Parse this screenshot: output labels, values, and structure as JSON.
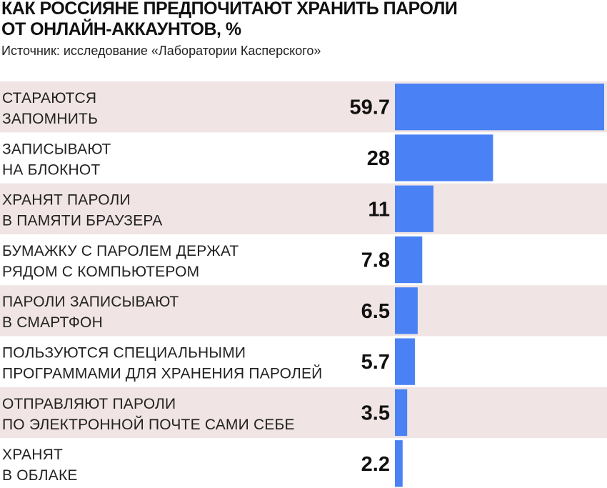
{
  "title_lines": [
    "КАК РОССИЯНЕ ПРЕДПОЧИТАЮТ ХРАНИТЬ ПАРОЛИ",
    "ОТ ОНЛАЙН-АККАУНТОВ, %"
  ],
  "source": "Источник: исследование «Лаборатории Касперского»",
  "colors": {
    "bar": "#4a82f5",
    "stripe": "#f1e4e4",
    "background": "#ffffff"
  },
  "chart_data": {
    "type": "bar",
    "orientation": "horizontal",
    "title": "КАК РОССИЯНЕ ПРЕДПОЧИТАЮТ ХРАНИТЬ ПАРОЛИ ОТ ОНЛАЙН-АККАУНТОВ, %",
    "categories": [
      [
        "СТАРАЮТСЯ",
        "ЗАПОМНИТЬ"
      ],
      [
        "ЗАПИСЫВАЮТ",
        "НА БЛОКНОТ"
      ],
      [
        "ХРАНЯТ ПАРОЛИ",
        "В ПАМЯТИ БРАУЗЕРА"
      ],
      [
        "БУМАЖКУ С ПАРОЛЕМ ДЕРЖАТ",
        "РЯДОМ С КОМПЬЮТЕРОМ"
      ],
      [
        "ПАРОЛИ ЗАПИСЫВАЮТ",
        "В СМАРТФОН"
      ],
      [
        "ПОЛЬЗУЮТСЯ СПЕЦИАЛЬНЫМИ",
        "ПРОГРАММАМИ ДЛЯ ХРАНЕНИЯ ПАРОЛЕЙ"
      ],
      [
        "ОТПРАВЛЯЮТ ПАРОЛИ",
        "ПО ЭЛЕКТРОННОЙ ПОЧТЕ САМИ СЕБЕ"
      ],
      [
        "ХРАНЯТ",
        "В ОБЛАКЕ"
      ]
    ],
    "values": [
      59.7,
      28,
      11,
      7.8,
      6.5,
      5.7,
      3.5,
      2.2
    ],
    "value_labels": [
      "59.7",
      "28",
      "11",
      "7.8",
      "6.5",
      "5.7",
      "3.5",
      "2.2"
    ],
    "xlim": [
      0,
      59.7
    ],
    "grid": false,
    "legend": "none"
  }
}
